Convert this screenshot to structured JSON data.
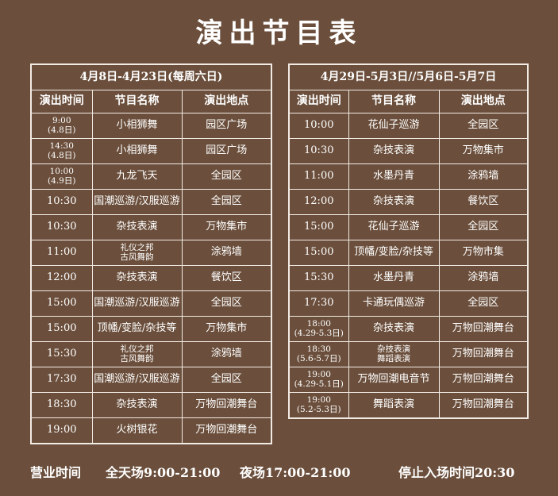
{
  "title": "演出节目表",
  "tables": [
    {
      "heading": "4月8日-4月23日(每周六日)",
      "columns": [
        "演出时间",
        "节目名称",
        "演出地点"
      ],
      "rows": [
        [
          "9:00\n(4.8日)",
          "小相狮舞",
          "园区广场"
        ],
        [
          "14:30\n(4.8日)",
          "小相狮舞",
          "园区广场"
        ],
        [
          "10:00\n(4.9日)",
          "九龙飞天",
          "全园区"
        ],
        [
          "10:30",
          "国潮巡游/汉服巡游",
          "全园区"
        ],
        [
          "10:30",
          "杂技表演",
          "万物集市"
        ],
        [
          "11:00",
          "礼仪之邦\n古风舞韵",
          "涂鸦墙"
        ],
        [
          "12:00",
          "杂技表演",
          "餐饮区"
        ],
        [
          "15:00",
          "国潮巡游/汉服巡游",
          "全园区"
        ],
        [
          "15:00",
          "顶幡/变脸/杂技等",
          "万物集市"
        ],
        [
          "15:30",
          "礼仪之邦\n古风舞韵",
          "涂鸦墙"
        ],
        [
          "17:30",
          "国潮巡游/汉服巡游",
          "全园区"
        ],
        [
          "18:30",
          "杂技表演",
          "万物回潮舞台"
        ],
        [
          "19:00",
          "火树银花",
          "万物回潮舞台"
        ]
      ]
    },
    {
      "heading": "4月29日-5月3日//5月6日-5月7日",
      "columns": [
        "演出时间",
        "节目名称",
        "演出地点"
      ],
      "rows": [
        [
          "10:00",
          "花仙子巡游",
          "全园区"
        ],
        [
          "10:30",
          "杂技表演",
          "万物集市"
        ],
        [
          "11:00",
          "水墨丹青",
          "涂鸦墙"
        ],
        [
          "12:00",
          "杂技表演",
          "餐饮区"
        ],
        [
          "15:00",
          "花仙子巡游",
          "全园区"
        ],
        [
          "15:00",
          "顶幡/变脸/杂技等",
          "万物市集"
        ],
        [
          "15:30",
          "水墨丹青",
          "涂鸦墙"
        ],
        [
          "17:30",
          "卡通玩偶巡游",
          "全园区"
        ],
        [
          "18:00\n(4.29-5.3日)",
          "杂技表演",
          "万物回潮舞台"
        ],
        [
          "18:30\n(5.6-5.7日)",
          "杂技表演\n舞蹈表演",
          "万物回潮舞台"
        ],
        [
          "19:00\n(4.29-5.1日)",
          "万物回潮电音节",
          "万物回潮舞台"
        ],
        [
          "19:00\n(5.2-5.3日)",
          "舞蹈表演",
          "万物回潮舞台"
        ]
      ]
    }
  ],
  "footer": [
    "营业时间",
    "全天场9:00-21:00",
    "夜场17:00-21:00",
    "停止入场时间20:30"
  ]
}
